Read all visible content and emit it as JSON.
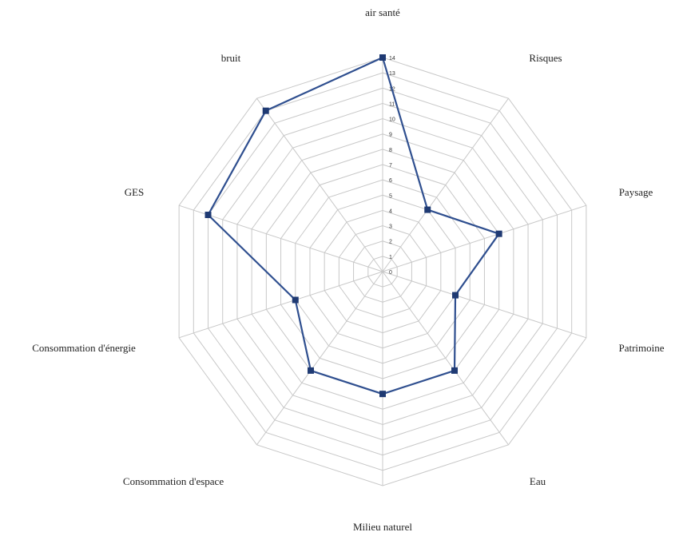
{
  "chart_data": {
    "type": "radar",
    "axes": [
      "air santé",
      "Risques",
      "Paysage",
      "Patrimoine",
      "Eau",
      "Milieu naturel",
      "Consommation d'espace",
      "Consommation d'énergie",
      "GES",
      "bruit"
    ],
    "tick_labels": [
      "0",
      "1",
      "2",
      "3",
      "4",
      "5",
      "6",
      "7",
      "8",
      "9",
      "10",
      "11",
      "12",
      "13",
      "14"
    ],
    "range": [
      0,
      14
    ],
    "grid": true,
    "series": [
      {
        "values": [
          14,
          5,
          8,
          5,
          8,
          8,
          8,
          6,
          12,
          13
        ],
        "color": "#2f4f8f",
        "marker_color": "#1f3a73"
      }
    ]
  }
}
